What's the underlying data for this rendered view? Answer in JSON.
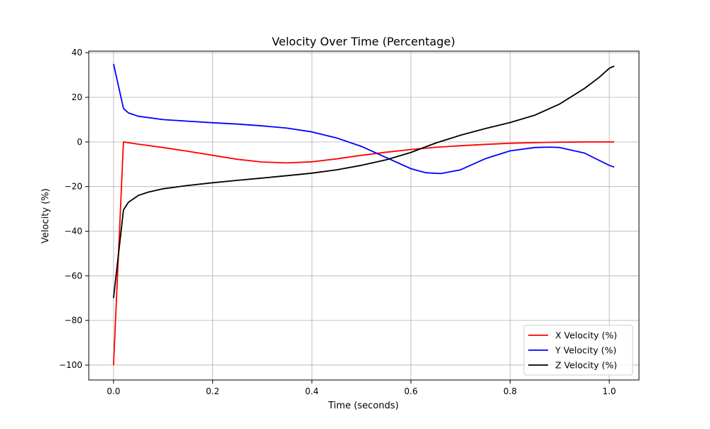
{
  "chart_data": {
    "type": "line",
    "title": "Velocity Over Time (Percentage)",
    "xlabel": "Time (seconds)",
    "ylabel": "Velocity (%)",
    "xlim": [
      -0.05,
      1.06
    ],
    "ylim": [
      -106.7,
      40.7
    ],
    "xticks": [
      0.0,
      0.2,
      0.4,
      0.6,
      0.8,
      1.0
    ],
    "xtick_labels": [
      "0.0",
      "0.2",
      "0.4",
      "0.6",
      "0.8",
      "1.0"
    ],
    "yticks": [
      -100,
      -80,
      -60,
      -40,
      -20,
      0,
      20,
      40
    ],
    "ytick_labels": [
      "−100",
      "−80",
      "−60",
      "−40",
      "−20",
      "0",
      "20",
      "40"
    ],
    "grid": true,
    "legend_position": "lower-right",
    "series": [
      {
        "name": "X Velocity (%)",
        "color": "#ff0000",
        "x": [
          0.0,
          0.02,
          0.05,
          0.1,
          0.15,
          0.2,
          0.25,
          0.3,
          0.35,
          0.4,
          0.45,
          0.5,
          0.55,
          0.6,
          0.65,
          0.7,
          0.75,
          0.8,
          0.85,
          0.9,
          0.95,
          1.0,
          1.01
        ],
        "y": [
          -100,
          0,
          -1,
          -2.5,
          -4.2,
          -6.0,
          -7.8,
          -9.0,
          -9.4,
          -8.9,
          -7.6,
          -6.0,
          -4.6,
          -3.4,
          -2.4,
          -1.7,
          -1.1,
          -0.6,
          -0.3,
          -0.1,
          0,
          0,
          0
        ]
      },
      {
        "name": "Y Velocity (%)",
        "color": "#0000ff",
        "x": [
          0.0,
          0.01,
          0.02,
          0.03,
          0.05,
          0.1,
          0.15,
          0.2,
          0.25,
          0.3,
          0.35,
          0.4,
          0.45,
          0.5,
          0.55,
          0.6,
          0.63,
          0.66,
          0.7,
          0.75,
          0.8,
          0.85,
          0.88,
          0.9,
          0.95,
          1.0,
          1.01
        ],
        "y": [
          35,
          25,
          15,
          13,
          11.5,
          10,
          9.3,
          8.6,
          8,
          7.2,
          6.2,
          4.5,
          1.8,
          -2.0,
          -7.0,
          -12.0,
          -13.8,
          -14.2,
          -12.5,
          -7.5,
          -4.0,
          -2.5,
          -2.3,
          -2.5,
          -5.0,
          -10.5,
          -11.3
        ]
      },
      {
        "name": "Z Velocity (%)",
        "color": "#000000",
        "x": [
          0.0,
          0.02,
          0.03,
          0.05,
          0.07,
          0.1,
          0.15,
          0.2,
          0.25,
          0.3,
          0.35,
          0.4,
          0.45,
          0.5,
          0.55,
          0.6,
          0.65,
          0.7,
          0.75,
          0.8,
          0.85,
          0.9,
          0.95,
          0.98,
          1.0,
          1.01
        ],
        "y": [
          -70,
          -30.5,
          -27,
          -24,
          -22.5,
          -21,
          -19.5,
          -18.3,
          -17.2,
          -16.2,
          -15.1,
          -14.0,
          -12.5,
          -10.5,
          -8.0,
          -4.7,
          -0.5,
          3.0,
          6.0,
          8.7,
          12.0,
          17.0,
          24.0,
          29.0,
          33.0,
          34.0
        ]
      }
    ]
  }
}
